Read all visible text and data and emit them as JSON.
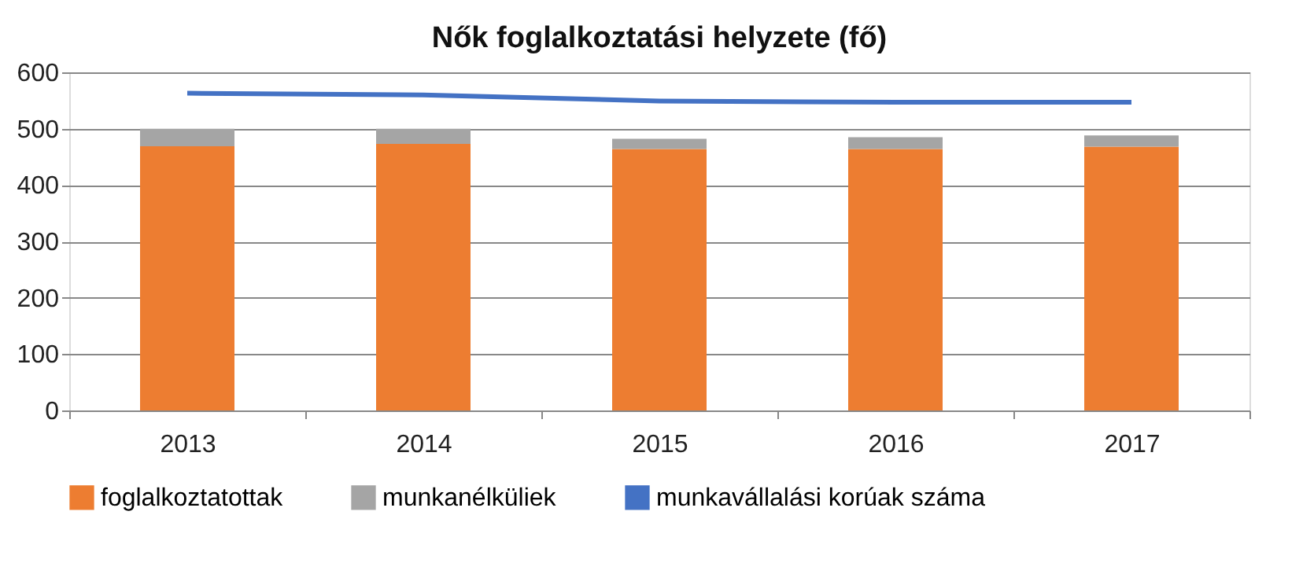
{
  "chart_data": {
    "type": "bar",
    "title": "Nők foglalkoztatási helyzete (fő)",
    "categories": [
      "2013",
      "2014",
      "2015",
      "2016",
      "2017"
    ],
    "stacked": true,
    "series": [
      {
        "name": "foglalkoztatottak",
        "color": "#ed7d31",
        "values": [
          469,
          473,
          464,
          464,
          468
        ]
      },
      {
        "name": "munkanélküliek",
        "color": "#a5a5a5",
        "values": [
          31,
          27,
          18,
          21,
          20
        ]
      },
      {
        "name": "munkavállalási korúak száma",
        "type": "line",
        "color": "#4472c4",
        "values": [
          563,
          560,
          549,
          547,
          547
        ]
      }
    ],
    "ylim": [
      0,
      600
    ],
    "yticks": [
      0,
      100,
      200,
      300,
      400,
      500,
      600
    ],
    "grid": "y",
    "legend": "bottom"
  }
}
